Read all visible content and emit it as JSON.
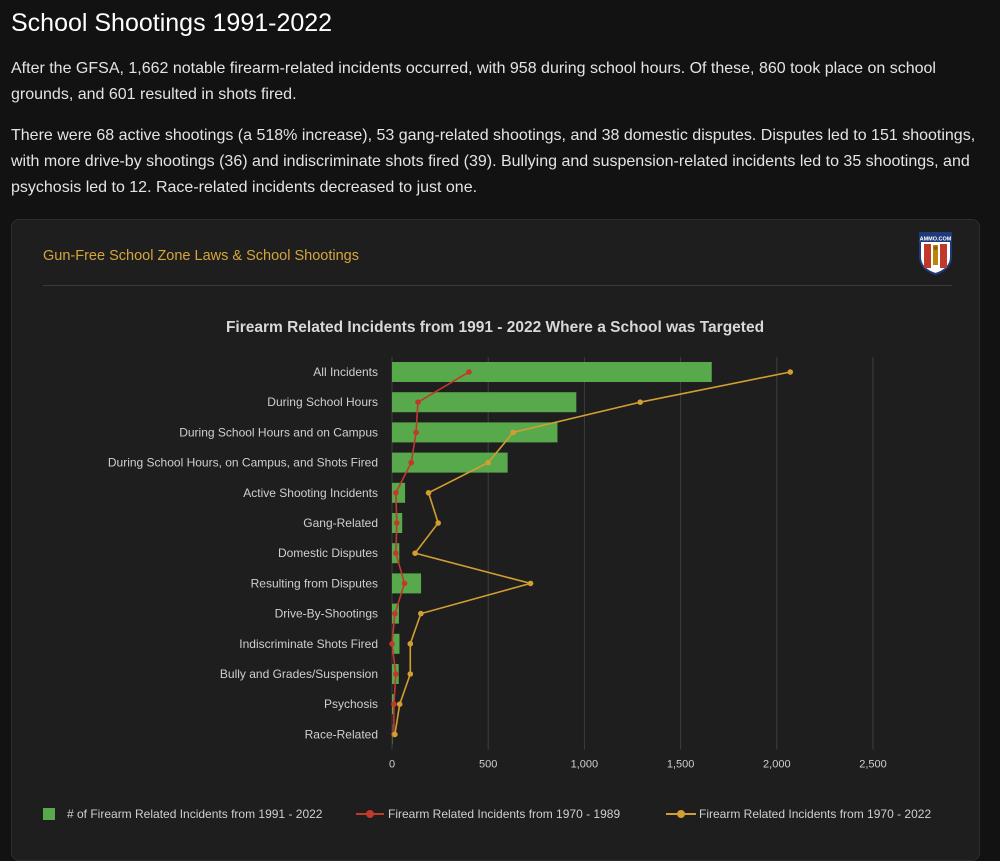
{
  "page": {
    "title": "School Shootings 1991-2022",
    "paragraphs": [
      "After the GFSA, 1,662 notable firearm-related incidents occurred, with 958 during school hours. Of these, 860 took place on school grounds, and 601 resulted in shots fired.",
      "There were 68 active shootings (a 518% increase), 53 gang-related shootings, and 38 domestic disputes. Disputes led to 151 shootings, with more drive-by shootings (36) and indiscriminate shots fired (39). Bullying and suspension-related incidents led to 35 shootings, and psychosis led to 12. Race-related incidents decreased to just one."
    ]
  },
  "card": {
    "title": "Gun-Free School Zone Laws & School Shootings",
    "logo_text": "AMMO.COM"
  },
  "colors": {
    "bar": "#58a94b",
    "line_1970_1989": "#c0392b",
    "line_1970_2022": "#d29e32",
    "grid": "#3e3e3e",
    "text": "#cfcfcf",
    "title": "#d5a53b"
  },
  "chart_data": {
    "type": "bar",
    "orientation": "horizontal",
    "title": "Firearm Related Incidents from 1991 - 2022 Where a School was Targeted",
    "categories": [
      "All Incidents",
      "During School Hours",
      "During School Hours and on Campus",
      "During School Hours, on Campus, and Shots Fired",
      "Active Shooting Incidents",
      "Gang-Related",
      "Domestic Disputes",
      "Resulting from Disputes",
      "Drive-By-Shootings",
      "Indiscriminate Shots Fired",
      "Bully and Grades/Suspension",
      "Psychosis",
      "Race-Related"
    ],
    "xlim": [
      0,
      2500
    ],
    "xticks": [
      0,
      500,
      1000,
      1500,
      2000,
      2500
    ],
    "xtick_labels": [
      "0",
      "500",
      "1,000",
      "1,500",
      "2,000",
      "2,500"
    ],
    "grid": true,
    "legend_position": "bottom",
    "series": [
      {
        "name": "# of Firearm Related Incidents from 1991 - 2022",
        "type": "bar",
        "values": [
          1662,
          958,
          860,
          601,
          68,
          53,
          38,
          151,
          36,
          39,
          35,
          12,
          1
        ]
      },
      {
        "name": "Firearm Related Incidents from 1970 - 1989",
        "type": "line",
        "values": [
          400,
          135,
          125,
          100,
          20,
          25,
          20,
          65,
          15,
          0,
          20,
          10,
          10
        ]
      },
      {
        "name": "Firearm Related Incidents from 1970 - 2022",
        "type": "line",
        "values": [
          2070,
          1290,
          630,
          500,
          190,
          240,
          120,
          720,
          150,
          95,
          95,
          40,
          15
        ]
      }
    ]
  }
}
